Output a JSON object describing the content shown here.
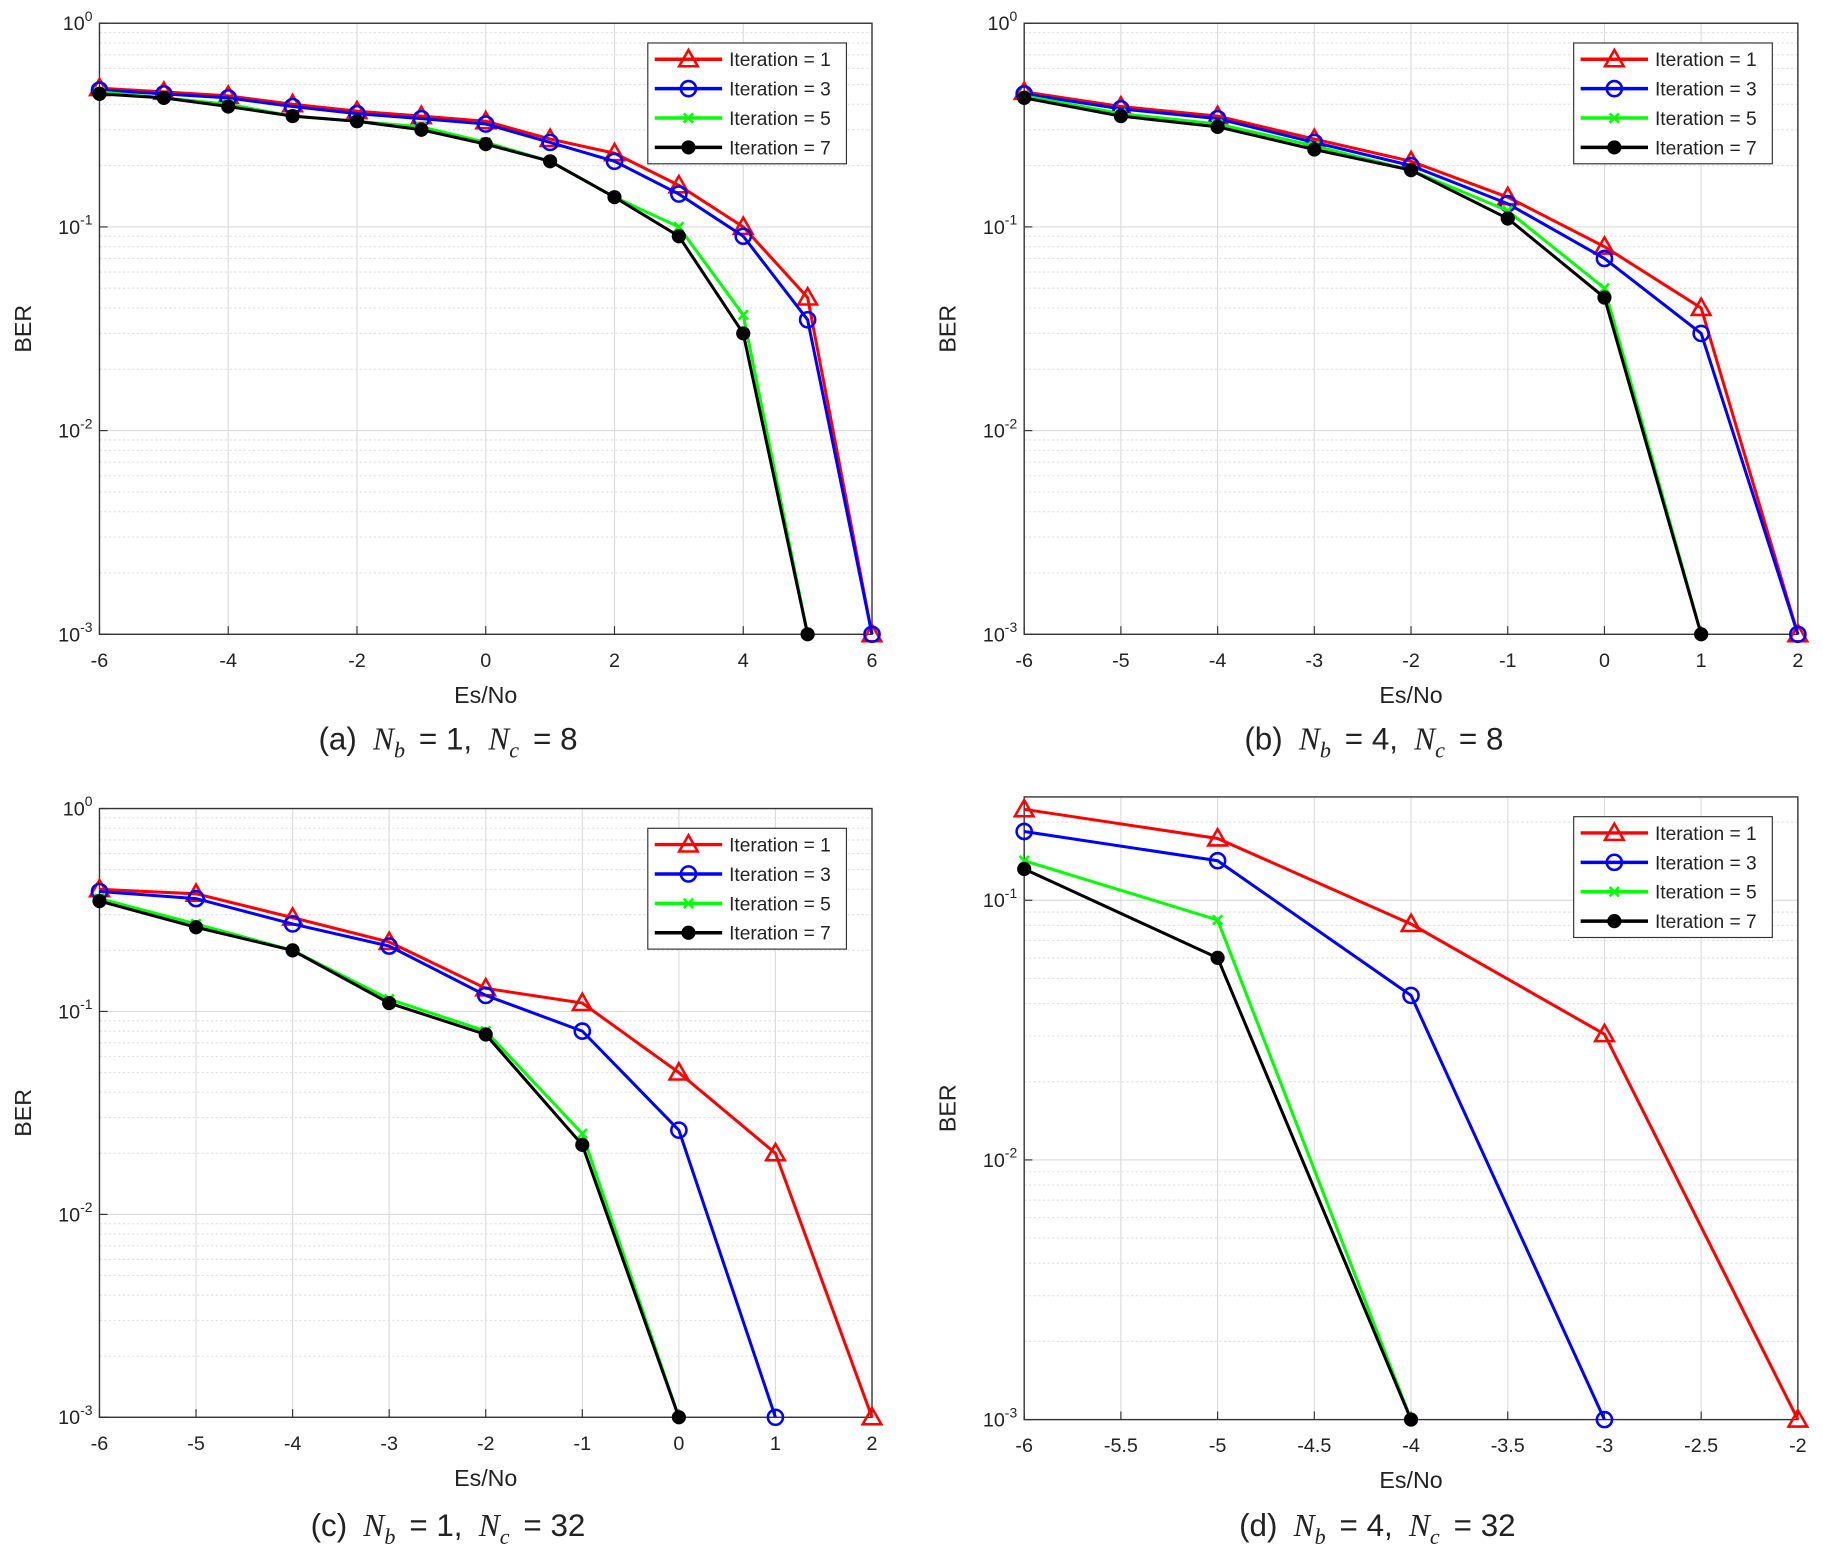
{
  "chart_data": [
    {
      "type": "line",
      "xlabel": "Es/No",
      "ylabel": "BER",
      "yscale": "log",
      "grid": true,
      "minor_grid": true,
      "legend": "northeast",
      "caption": {
        "label": "(a)",
        "terms": [
          {
            "symbol": "N",
            "sub": "b",
            "value": "= 1,"
          },
          {
            "symbol": "N",
            "sub": "c",
            "value": "= 8"
          }
        ]
      },
      "x": [
        -6,
        -5,
        -4,
        -3,
        -2,
        -1,
        0,
        1,
        2,
        3,
        4,
        5,
        6
      ],
      "xlim": [
        -6,
        6
      ],
      "xticks": [
        -6,
        -4,
        -2,
        0,
        2,
        4,
        6
      ],
      "ylim": [
        0.001,
        1
      ],
      "yticks": [
        {
          "value": 0.001,
          "label": "10^-3"
        },
        {
          "value": 0.01,
          "label": "10^-2"
        },
        {
          "value": 0.1,
          "label": "10^-1"
        },
        {
          "value": 1,
          "label": "10^0"
        }
      ],
      "series": [
        {
          "name": "Iteration = 1",
          "color": "#ff0000",
          "marker": "triangle",
          "values": [
            0.48,
            0.46,
            0.44,
            0.4,
            0.37,
            0.35,
            0.33,
            0.27,
            0.23,
            0.16,
            0.1,
            0.045,
            0.001
          ]
        },
        {
          "name": "Iteration = 3",
          "color": "#0000ff",
          "marker": "circle",
          "values": [
            0.47,
            0.45,
            0.43,
            0.39,
            0.36,
            0.34,
            0.32,
            0.26,
            0.21,
            0.145,
            0.09,
            0.035,
            0.001
          ]
        },
        {
          "name": "Iteration = 5",
          "color": "#00ff00",
          "marker": "x",
          "values": [
            0.46,
            0.43,
            0.4,
            0.35,
            0.33,
            0.31,
            0.26,
            0.21,
            0.14,
            0.1,
            0.037,
            0.001,
            null
          ]
        },
        {
          "name": "Iteration = 7",
          "color": "#000000",
          "marker": "dot",
          "values": [
            0.45,
            0.43,
            0.39,
            0.35,
            0.33,
            0.3,
            0.255,
            0.21,
            0.14,
            0.09,
            0.03,
            0.001,
            null
          ]
        }
      ]
    },
    {
      "type": "line",
      "xlabel": "Es/No",
      "ylabel": "BER",
      "yscale": "log",
      "grid": true,
      "minor_grid": true,
      "legend": "northeast",
      "caption": {
        "label": "(b)",
        "terms": [
          {
            "symbol": "N",
            "sub": "b",
            "value": "= 4,"
          },
          {
            "symbol": "N",
            "sub": "c",
            "value": "= 8"
          }
        ]
      },
      "x": [
        -6,
        -5,
        -4,
        -3,
        -2,
        -1,
        0,
        1,
        2
      ],
      "xlim": [
        -6,
        2
      ],
      "xticks": [
        -6,
        -5,
        -4,
        -3,
        -2,
        -1,
        0,
        1,
        2
      ],
      "ylim": [
        0.001,
        1
      ],
      "yticks": [
        {
          "value": 0.001,
          "label": "10^-3"
        },
        {
          "value": 0.01,
          "label": "10^-2"
        },
        {
          "value": 0.1,
          "label": "10^-1"
        },
        {
          "value": 1,
          "label": "10^0"
        }
      ],
      "series": [
        {
          "name": "Iteration = 1",
          "color": "#ff0000",
          "marker": "triangle",
          "values": [
            0.46,
            0.39,
            0.35,
            0.27,
            0.21,
            0.14,
            0.08,
            0.04,
            0.001
          ]
        },
        {
          "name": "Iteration = 3",
          "color": "#0000ff",
          "marker": "circle",
          "values": [
            0.45,
            0.38,
            0.34,
            0.26,
            0.2,
            0.13,
            0.07,
            0.03,
            0.001
          ]
        },
        {
          "name": "Iteration = 5",
          "color": "#00ff00",
          "marker": "x",
          "values": [
            0.44,
            0.36,
            0.32,
            0.25,
            0.19,
            0.12,
            0.05,
            0.001,
            null
          ]
        },
        {
          "name": "Iteration = 7",
          "color": "#000000",
          "marker": "dot",
          "values": [
            0.43,
            0.35,
            0.31,
            0.24,
            0.19,
            0.11,
            0.045,
            0.001,
            null
          ]
        }
      ]
    },
    {
      "type": "line",
      "xlabel": "Es/No",
      "ylabel": "BER",
      "yscale": "log",
      "grid": true,
      "minor_grid": true,
      "legend": "northeast",
      "caption": {
        "label": "(c)",
        "terms": [
          {
            "symbol": "N",
            "sub": "b",
            "value": "= 1,"
          },
          {
            "symbol": "N",
            "sub": "c",
            "value": "= 32"
          }
        ]
      },
      "x": [
        -6,
        -5,
        -4,
        -3,
        -2,
        -1,
        0,
        1,
        2
      ],
      "xlim": [
        -6,
        2
      ],
      "xticks": [
        -6,
        -5,
        -4,
        -3,
        -2,
        -1,
        0,
        1,
        2
      ],
      "ylim": [
        0.001,
        1
      ],
      "yticks": [
        {
          "value": 0.001,
          "label": "10^-3"
        },
        {
          "value": 0.01,
          "label": "10^-2"
        },
        {
          "value": 0.1,
          "label": "10^-1"
        },
        {
          "value": 1,
          "label": "10^0"
        }
      ],
      "series": [
        {
          "name": "Iteration = 1",
          "color": "#ff0000",
          "marker": "triangle",
          "values": [
            0.4,
            0.38,
            0.29,
            0.22,
            0.13,
            0.11,
            0.05,
            0.02,
            0.001
          ]
        },
        {
          "name": "Iteration = 3",
          "color": "#0000ff",
          "marker": "circle",
          "values": [
            0.39,
            0.36,
            0.27,
            0.21,
            0.12,
            0.08,
            0.026,
            0.001,
            null
          ]
        },
        {
          "name": "Iteration = 5",
          "color": "#00ff00",
          "marker": "x",
          "values": [
            0.36,
            0.27,
            0.2,
            0.115,
            0.08,
            0.025,
            0.001,
            null,
            null
          ]
        },
        {
          "name": "Iteration = 7",
          "color": "#000000",
          "marker": "dot",
          "values": [
            0.35,
            0.26,
            0.2,
            0.11,
            0.077,
            0.022,
            0.001,
            null,
            null
          ]
        }
      ]
    },
    {
      "type": "line",
      "xlabel": "Es/No",
      "ylabel": "BER",
      "yscale": "log",
      "grid": true,
      "minor_grid": true,
      "legend": "northeast",
      "caption": {
        "label": "(d)",
        "terms": [
          {
            "symbol": "N",
            "sub": "b",
            "value": "= 4,"
          },
          {
            "symbol": "N",
            "sub": "c",
            "value": "= 32"
          }
        ]
      },
      "x": [
        -6,
        -5,
        -4,
        -3,
        -2
      ],
      "xlim": [
        -6,
        -2
      ],
      "xticks": [
        -6,
        -5.5,
        -5,
        -4.5,
        -4,
        -3.5,
        -3,
        -2.5,
        -2
      ],
      "ylim": [
        0.001,
        0.25
      ],
      "yticks": [
        {
          "value": 0.001,
          "label": "10^-3"
        },
        {
          "value": 0.01,
          "label": "10^-2"
        },
        {
          "value": 0.1,
          "label": "10^-1"
        }
      ],
      "series": [
        {
          "name": "Iteration = 1",
          "color": "#ff0000",
          "marker": "triangle",
          "values": [
            0.224,
            0.173,
            0.081,
            0.0305,
            0.001
          ]
        },
        {
          "name": "Iteration = 3",
          "color": "#0000ff",
          "marker": "circle",
          "values": [
            0.184,
            0.142,
            0.043,
            0.001,
            null
          ]
        },
        {
          "name": "Iteration = 5",
          "color": "#00ff00",
          "marker": "x",
          "values": [
            0.142,
            0.084,
            0.001,
            null,
            null
          ]
        },
        {
          "name": "Iteration = 7",
          "color": "#000000",
          "marker": "dot",
          "values": [
            0.132,
            0.06,
            0.001,
            null,
            null
          ]
        }
      ]
    }
  ]
}
